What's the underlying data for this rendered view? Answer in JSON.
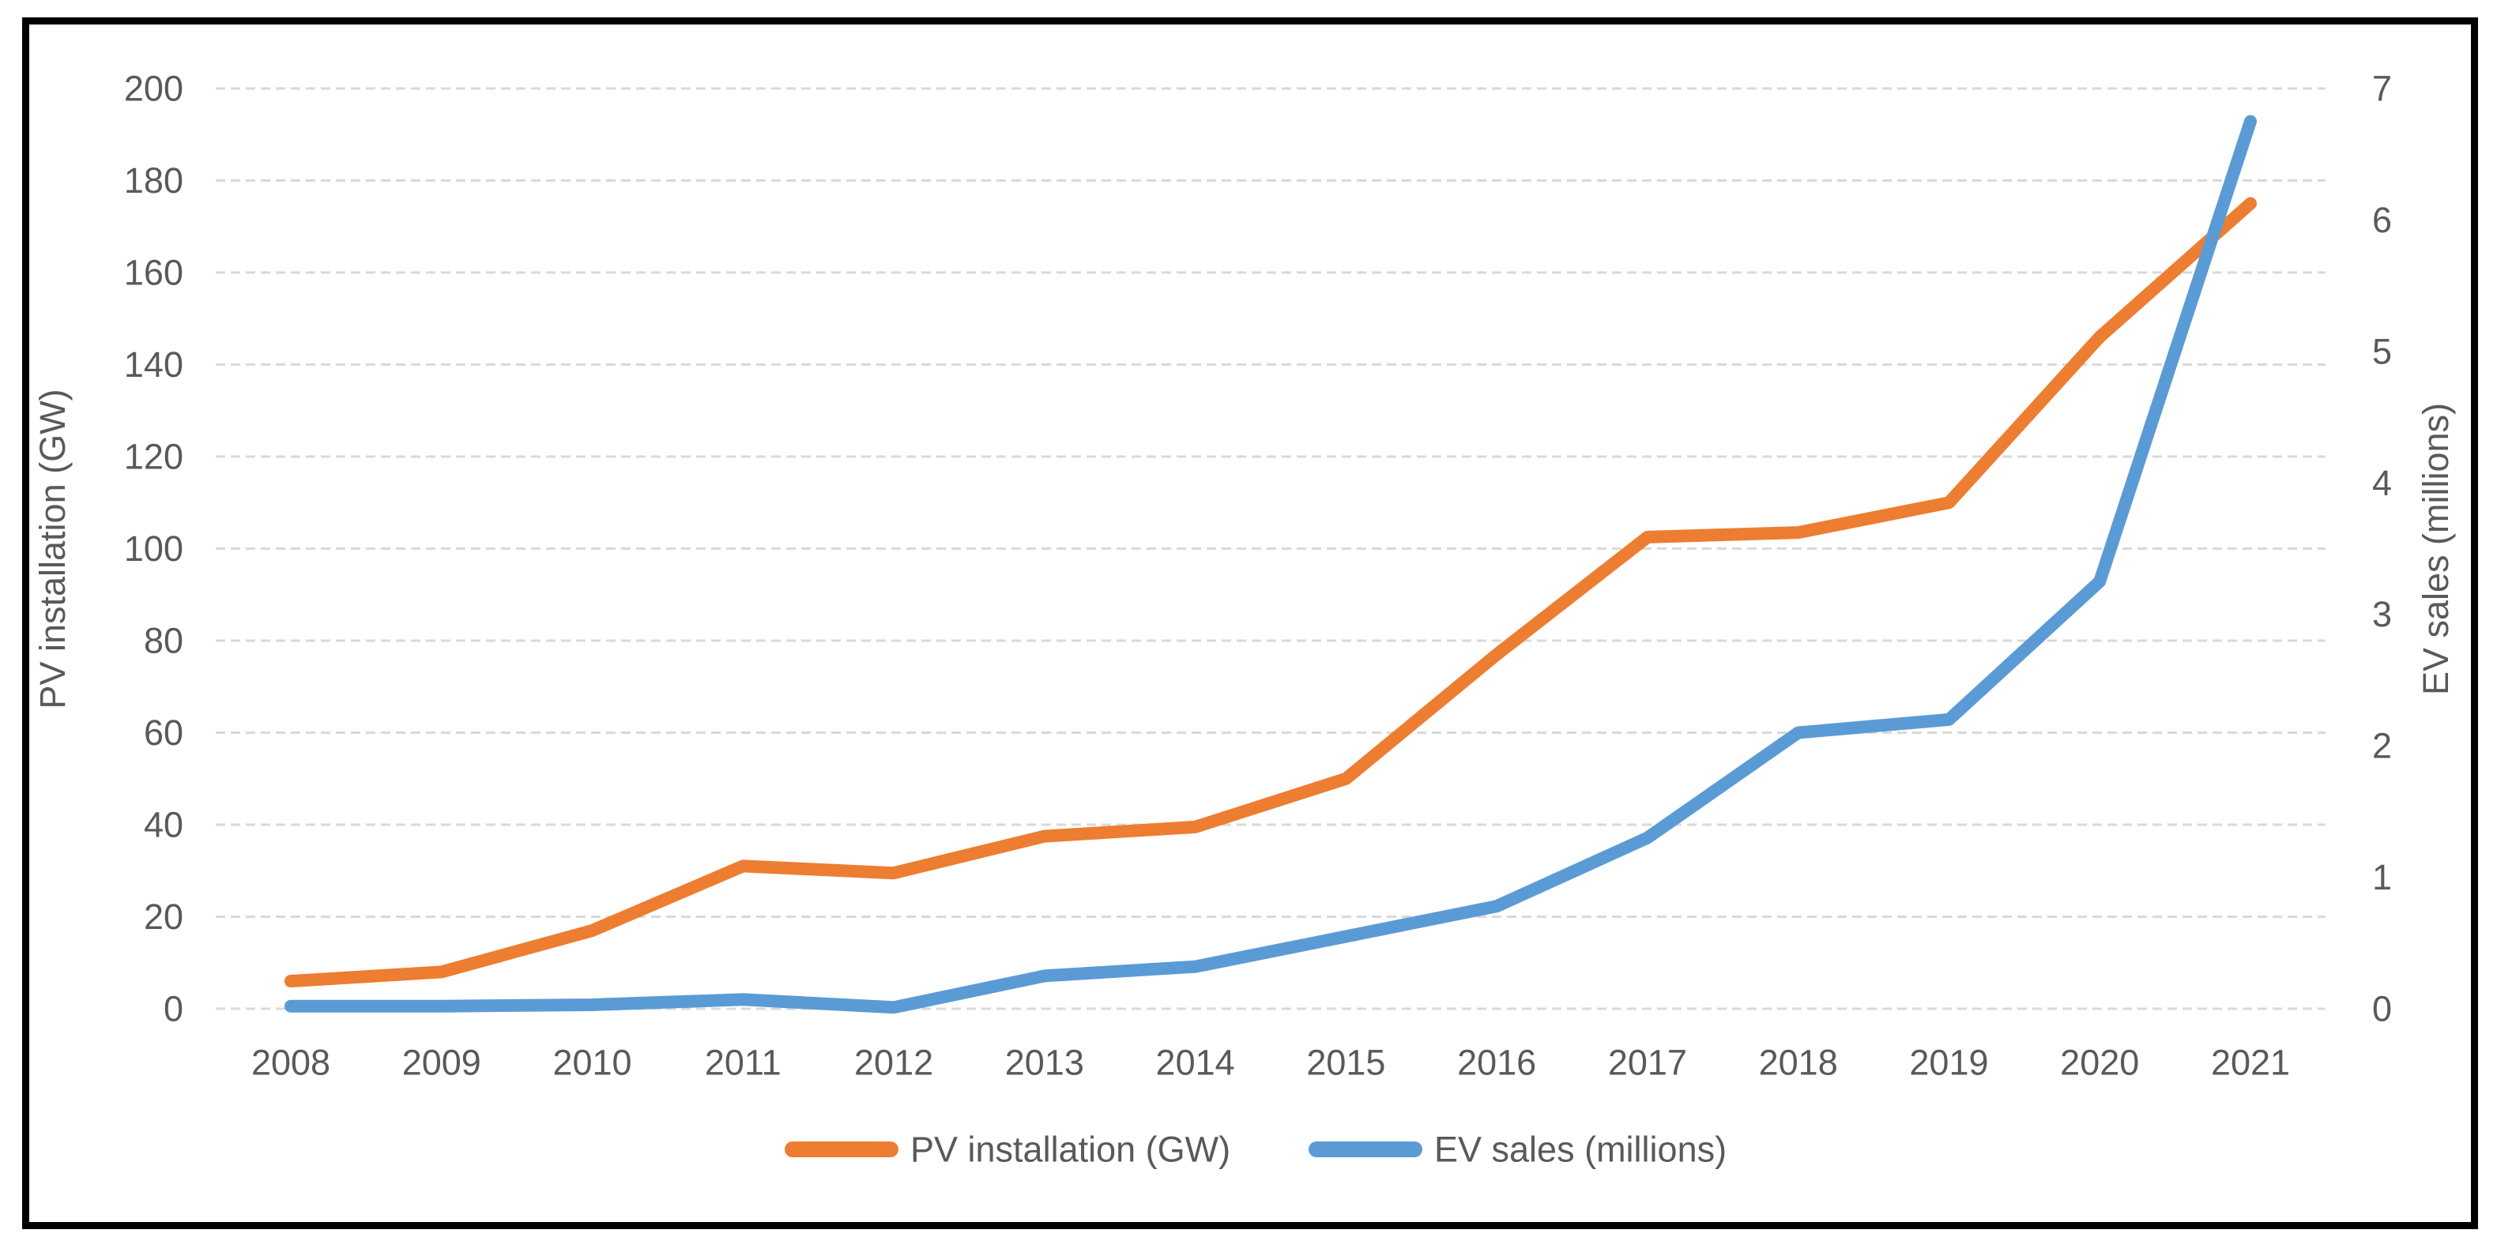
{
  "chart_data": {
    "type": "line",
    "categories": [
      "2008",
      "2009",
      "2010",
      "2011",
      "2012",
      "2013",
      "2014",
      "2015",
      "2016",
      "2017",
      "2018",
      "2019",
      "2020",
      "2021"
    ],
    "series": [
      {
        "name": "PV installation (GW)",
        "axis": "left",
        "color": "#ED7D31",
        "values": [
          6,
          8,
          17,
          31,
          29.5,
          37.5,
          39.5,
          50,
          77,
          102.5,
          103.5,
          110,
          146,
          175
        ]
      },
      {
        "name": "EV sales (millions)",
        "axis": "right",
        "color": "#5B9BD5",
        "values": [
          0.02,
          0.02,
          0.03,
          0.07,
          0.01,
          0.25,
          0.32,
          0.55,
          0.78,
          1.3,
          2.1,
          2.2,
          3.25,
          6.75
        ]
      }
    ],
    "left_axis": {
      "title": "PV installation (GW)",
      "range": [
        0,
        200
      ],
      "ticks": [
        0,
        20,
        40,
        60,
        80,
        100,
        120,
        140,
        160,
        180,
        200
      ]
    },
    "right_axis": {
      "title": "EV sales (millions)",
      "range": [
        0,
        7
      ],
      "ticks": [
        0,
        1,
        2,
        3,
        4,
        5,
        6,
        7
      ]
    },
    "legend": {
      "position": "bottom",
      "items": [
        "PV installation (GW)",
        "EV sales (millions)"
      ]
    },
    "grid": true,
    "colors": {
      "grid": "#D9D9D9",
      "text": "#595959",
      "frame": "#000000",
      "background": "#FFFFFF"
    }
  }
}
